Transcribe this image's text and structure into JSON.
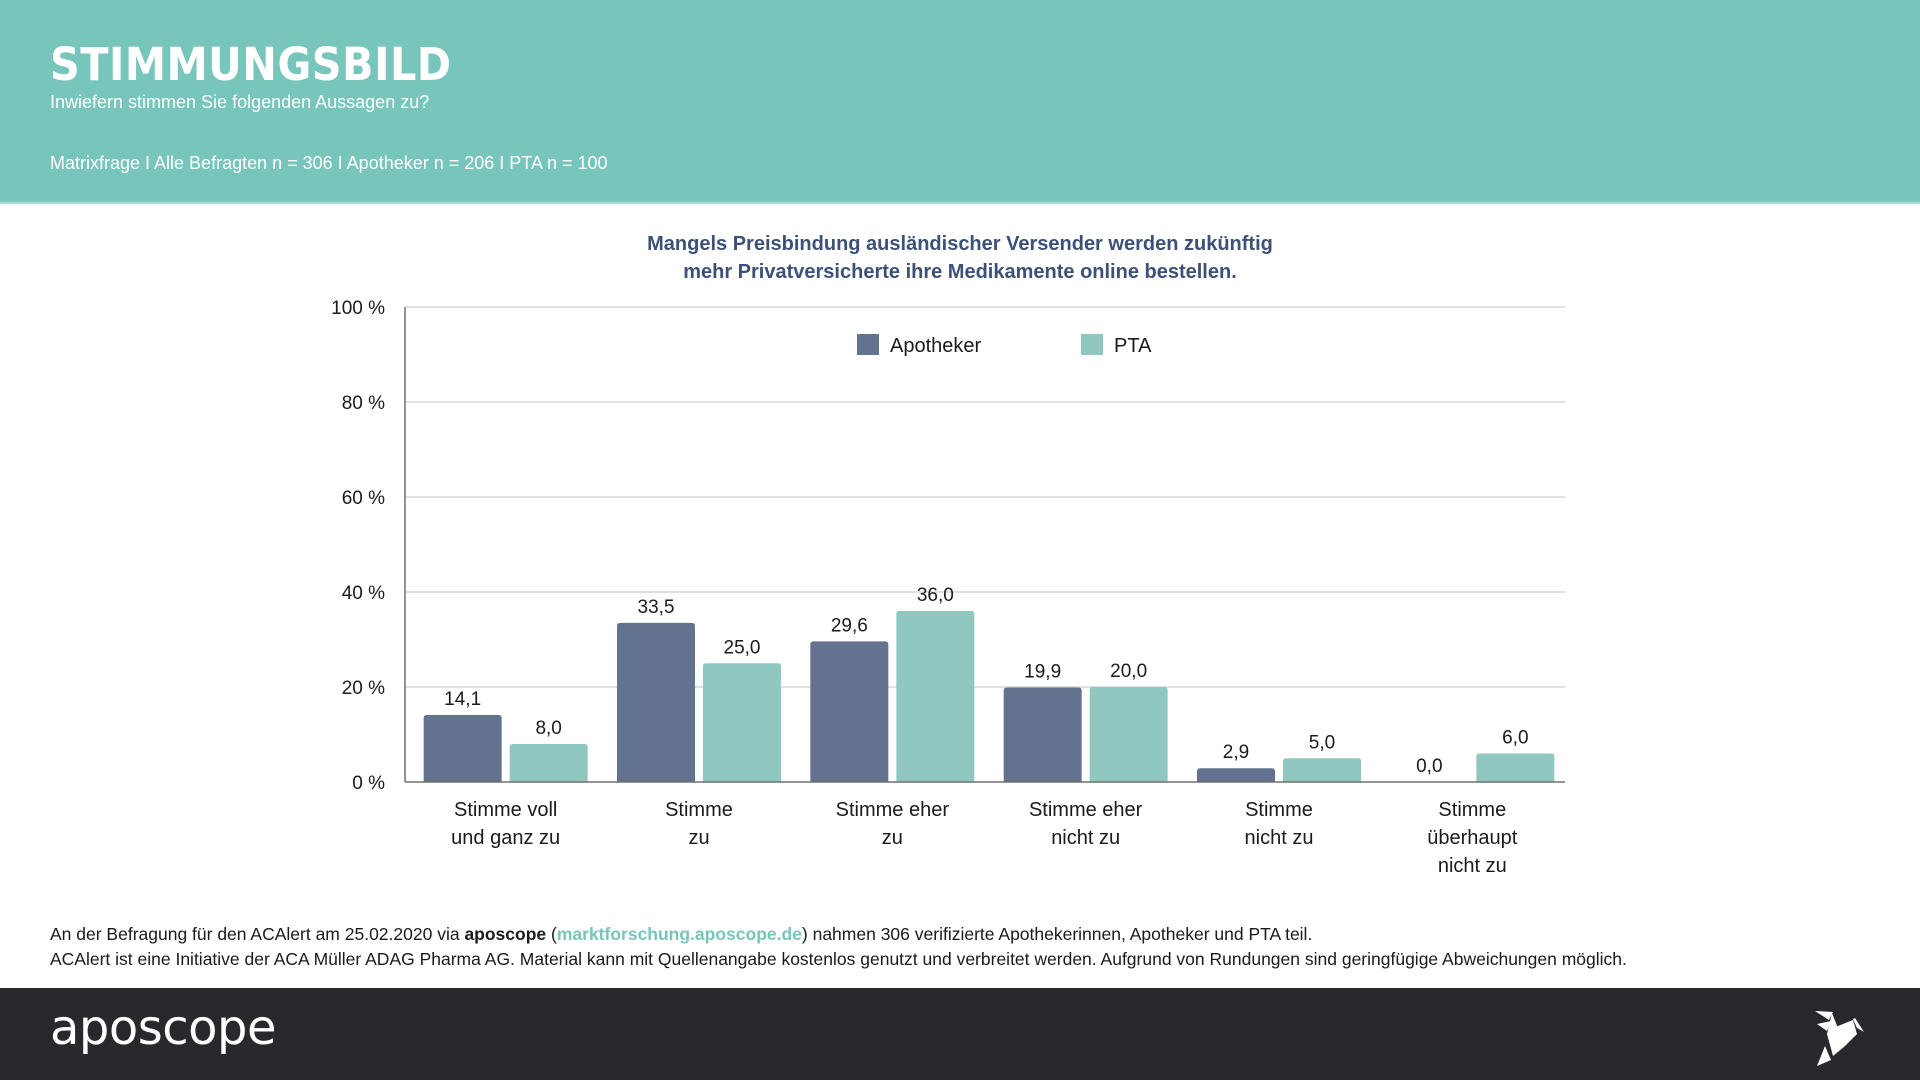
{
  "header": {
    "title": "STIMMUNGSBILD",
    "subtitle": "Inwiefern stimmen Sie folgenden Aussagen zu?",
    "meta": "Matrixfrage I Alle Befragten n = 306 I Apotheker n = 206 I PTA n = 100",
    "background_color": "#77c5bb"
  },
  "chart_data": {
    "type": "bar",
    "title_line1": "Mangels Preisbindung ausländischer Versender werden zukünftig",
    "title_line2": "mehr Privatversicherte ihre Medikamente online bestellen.",
    "xlabel": "",
    "ylabel": "",
    "ylim": [
      0,
      100
    ],
    "yticks": [
      0,
      20,
      40,
      60,
      80,
      100
    ],
    "ytick_labels": [
      "0 %",
      "20 %",
      "40 %",
      "60 %",
      "80 %",
      "100 %"
    ],
    "grid": true,
    "legend_position": "top-center",
    "categories": [
      [
        "Stimme voll",
        "und ganz zu"
      ],
      [
        "Stimme",
        "zu"
      ],
      [
        "Stimme eher",
        "zu"
      ],
      [
        "Stimme eher",
        "nicht zu"
      ],
      [
        "Stimme",
        "nicht zu"
      ],
      [
        "Stimme",
        "überhaupt",
        "nicht zu"
      ]
    ],
    "series": [
      {
        "name": "Apotheker",
        "color": "#63738f",
        "values": [
          14.1,
          33.5,
          29.6,
          19.9,
          2.9,
          0.0
        ],
        "labels": [
          "14,1",
          "33,5",
          "29,6",
          "19,9",
          "2,9",
          "0,0"
        ]
      },
      {
        "name": "PTA",
        "color": "#91c7c1",
        "values": [
          8.0,
          25.0,
          36.0,
          20.0,
          5.0,
          6.0
        ],
        "labels": [
          "8,0",
          "25,0",
          "36,0",
          "20,0",
          "5,0",
          "6,0"
        ]
      }
    ]
  },
  "footnote": {
    "line1_pre": "An der Befragung für den ACAlert am 25.02.2020 via ",
    "line1_brand": "aposcope",
    "line1_paren_open": " (",
    "line1_link": "marktforschung.aposcope.de",
    "line1_post": ") nahmen 306 verifizierte Apothekerinnen, Apotheker und PTA teil.",
    "line2": "ACAlert ist eine Initiative der ACA Müller ADAG Pharma AG. Material kann mit Quellenangabe kostenlos genutzt und verbreitet werden. Aufgrund von Rundungen sind geringfügige Abweichungen möglich."
  },
  "footer": {
    "logo_text": "aposcope",
    "icon": "origami-bird-icon",
    "background_color": "#28292d"
  }
}
